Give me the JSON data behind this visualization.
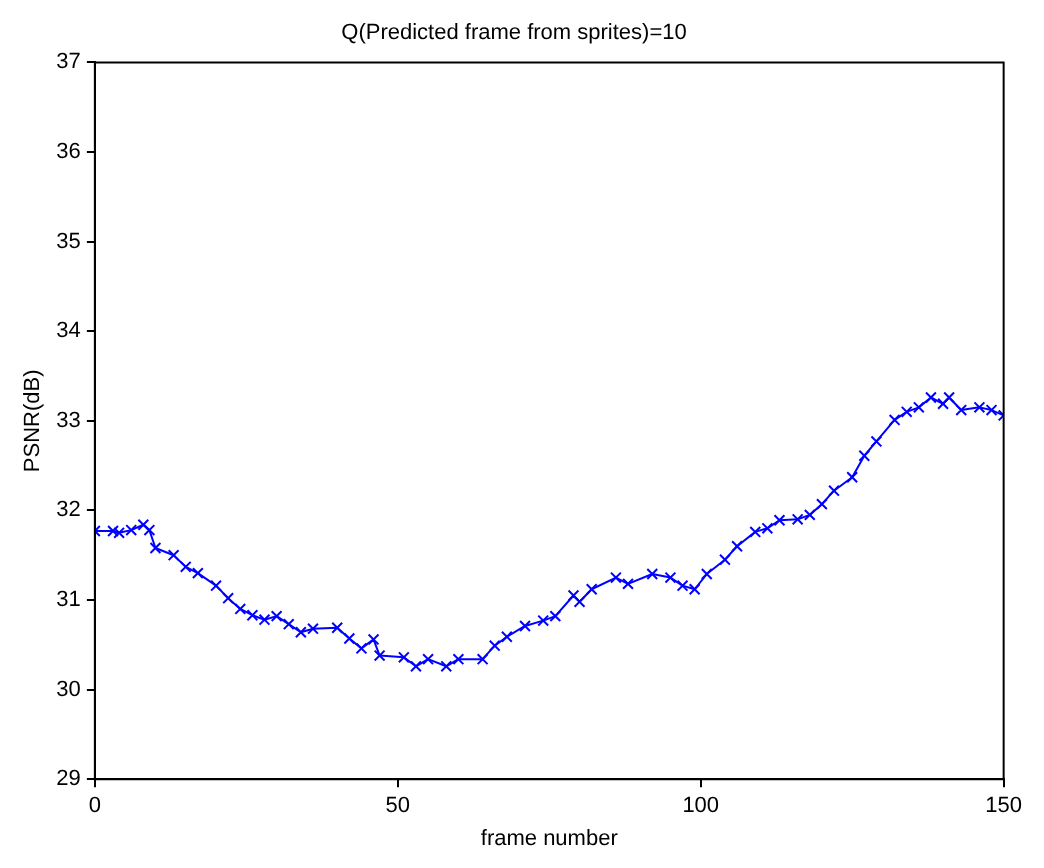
{
  "chart_data": {
    "type": "line",
    "title": "Q(Predicted frame from sprites)=10",
    "xlabel": "frame number",
    "ylabel": "PSNR(dB)",
    "xlim": [
      0,
      150
    ],
    "xticks": [
      0,
      50,
      100,
      150
    ],
    "ylim": [
      29,
      37
    ],
    "yticks": [
      29,
      30,
      31,
      32,
      33,
      34,
      35,
      36,
      37
    ],
    "marker": "cross",
    "line_style": "solid",
    "grid": false,
    "legend": false,
    "series": [
      {
        "color": "#0000ff",
        "x": [
          0,
          3,
          4,
          6,
          8,
          9,
          10,
          13,
          15,
          17,
          20,
          22,
          24,
          26,
          28,
          30,
          32,
          34,
          36,
          40,
          42,
          44,
          46,
          47,
          51,
          53,
          55,
          58,
          60,
          64,
          66,
          68,
          71,
          74,
          76,
          79,
          80,
          82,
          86,
          88,
          92,
          95,
          97,
          99,
          101,
          104,
          106,
          109,
          111,
          113,
          116,
          118,
          120,
          122,
          125,
          127,
          129,
          132,
          134,
          136,
          138,
          140,
          141,
          143,
          146,
          148,
          150
        ],
        "values": [
          31.77,
          31.77,
          31.75,
          31.78,
          31.84,
          31.78,
          31.58,
          31.5,
          31.37,
          31.3,
          31.16,
          31.02,
          30.9,
          30.83,
          30.78,
          30.82,
          30.73,
          30.64,
          30.68,
          30.69,
          30.57,
          30.46,
          30.56,
          30.38,
          30.36,
          30.26,
          30.34,
          30.26,
          30.34,
          30.34,
          30.49,
          30.59,
          30.71,
          30.77,
          30.82,
          31.05,
          30.98,
          31.12,
          31.25,
          31.18,
          31.29,
          31.25,
          31.16,
          31.12,
          31.29,
          31.45,
          31.6,
          31.76,
          31.8,
          31.89,
          31.9,
          31.95,
          32.07,
          32.22,
          32.37,
          32.61,
          32.77,
          33.01,
          33.1,
          33.15,
          33.26,
          33.19,
          33.26,
          33.12,
          33.15,
          33.12,
          33.06
        ]
      }
    ]
  }
}
